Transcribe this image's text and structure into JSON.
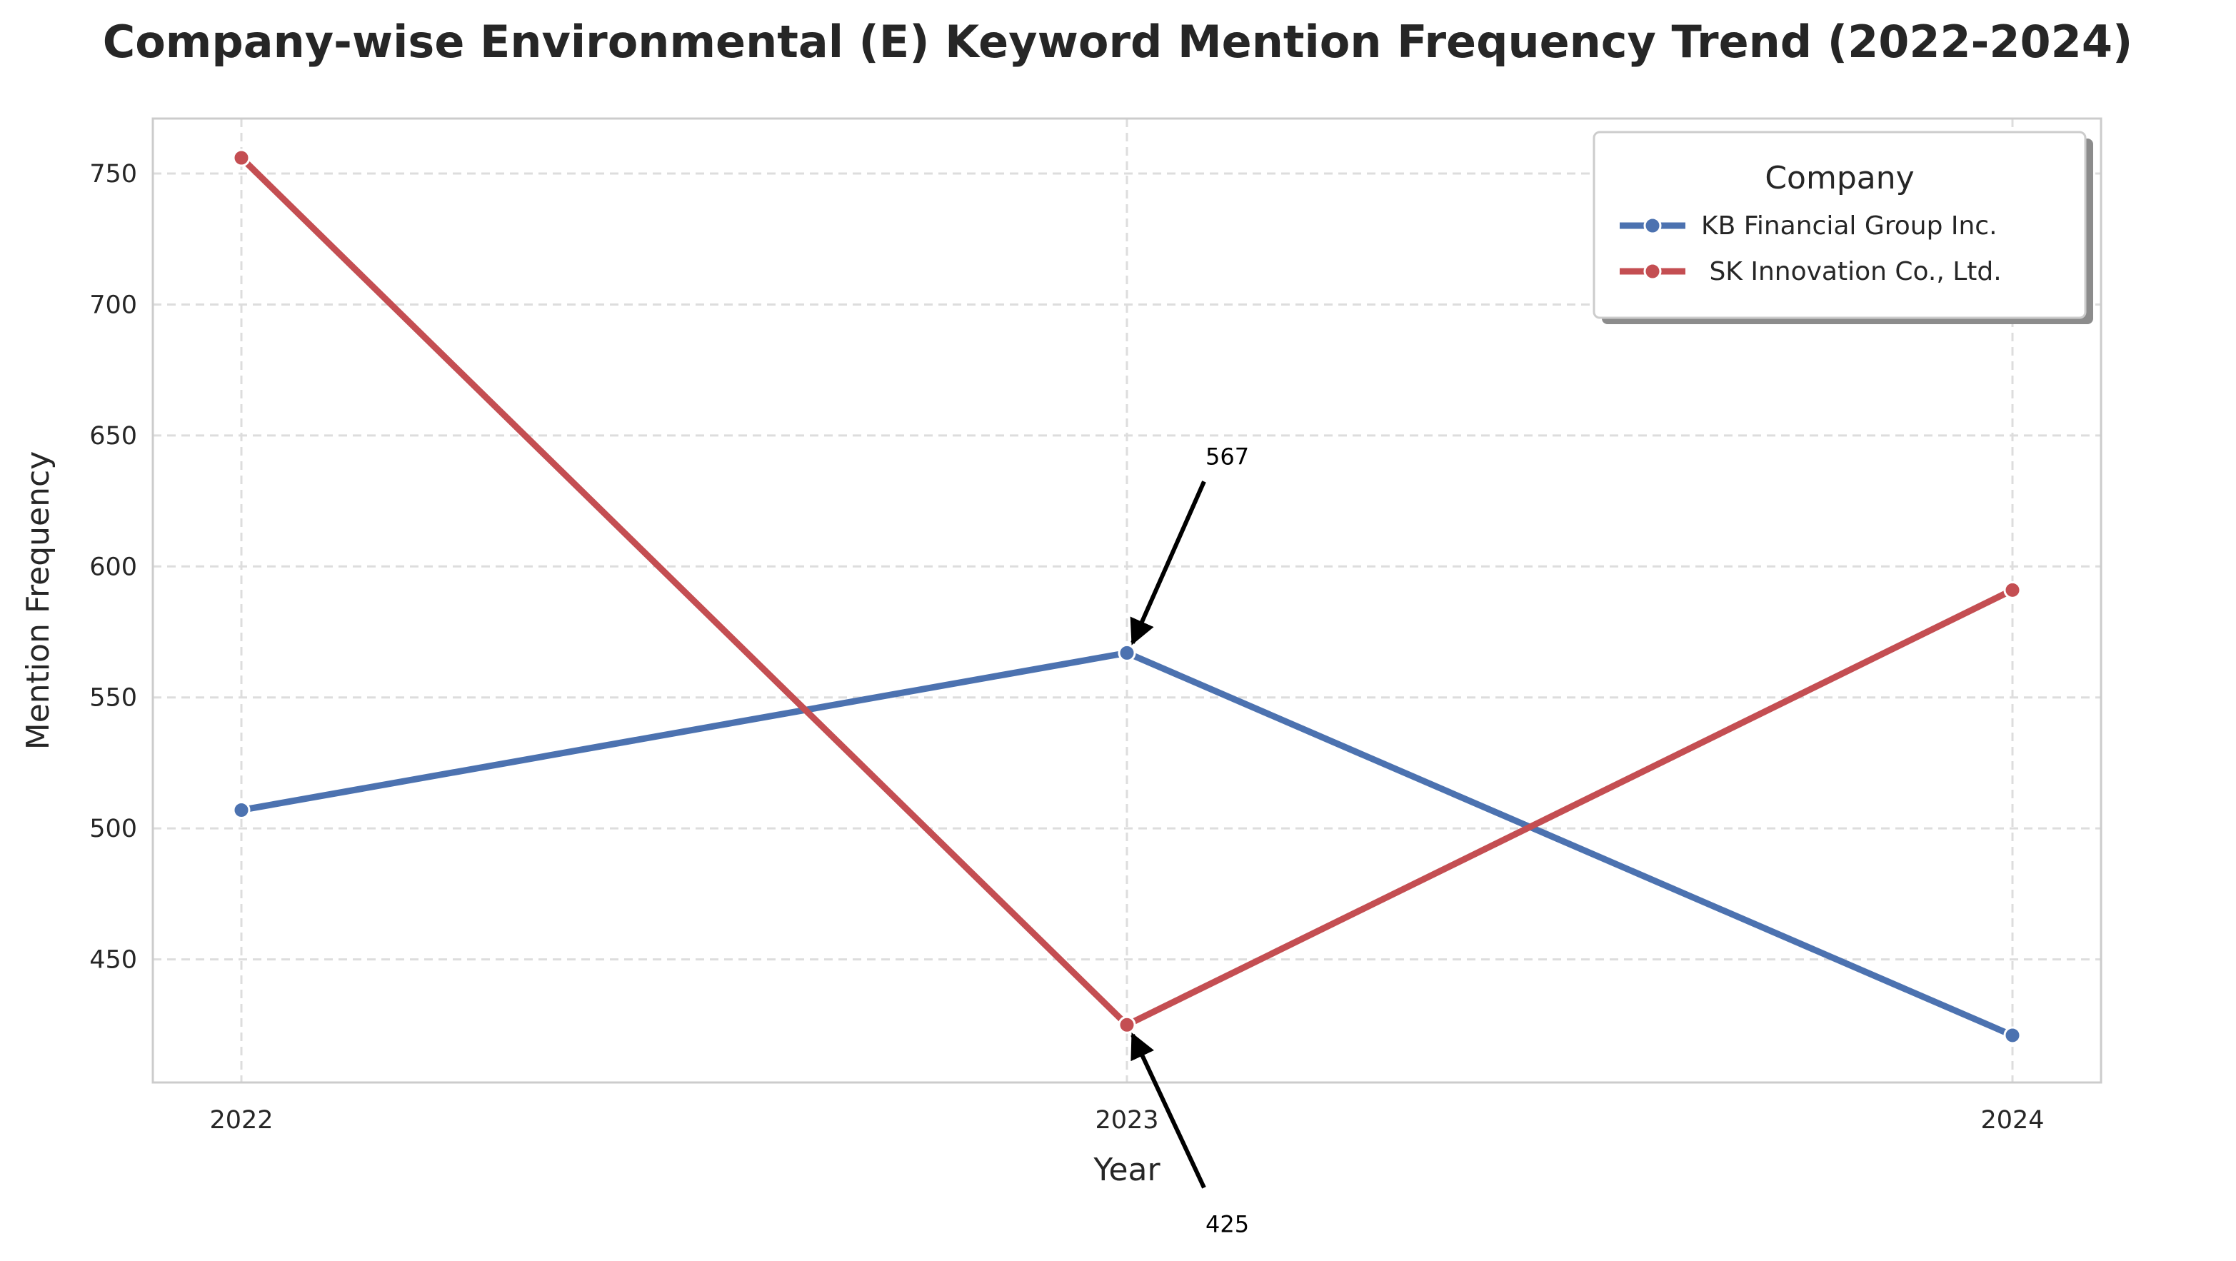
{
  "chart_data": {
    "type": "line",
    "title": "Company-wise Environmental (E) Keyword Mention Frequency Trend (2022-2024)",
    "xlabel": "Year",
    "ylabel": "Mention Frequency",
    "x": [
      2022,
      2023,
      2024
    ],
    "x_tick_labels": [
      "2022",
      "2023",
      "2024"
    ],
    "y_ticks": [
      450,
      500,
      550,
      600,
      650,
      700,
      750
    ],
    "ylim": [
      403,
      771
    ],
    "xlim": [
      2021.9,
      2024.1
    ],
    "grid": true,
    "legend": {
      "title": "Company",
      "placement": "top-right"
    },
    "series": [
      {
        "name": "KB Financial Group Inc.",
        "color": "#4c72b0",
        "values": [
          507,
          567,
          421
        ]
      },
      {
        "name": " SK Innovation Co., Ltd.",
        "color": "#c44e52",
        "values": [
          756,
          425,
          591
        ]
      }
    ],
    "annotations": [
      {
        "text": "567",
        "x": 2023,
        "y": 567,
        "series": "KB Financial Group Inc."
      },
      {
        "text": "425",
        "x": 2023,
        "y": 425,
        "series": " SK Innovation Co., Ltd."
      }
    ]
  }
}
